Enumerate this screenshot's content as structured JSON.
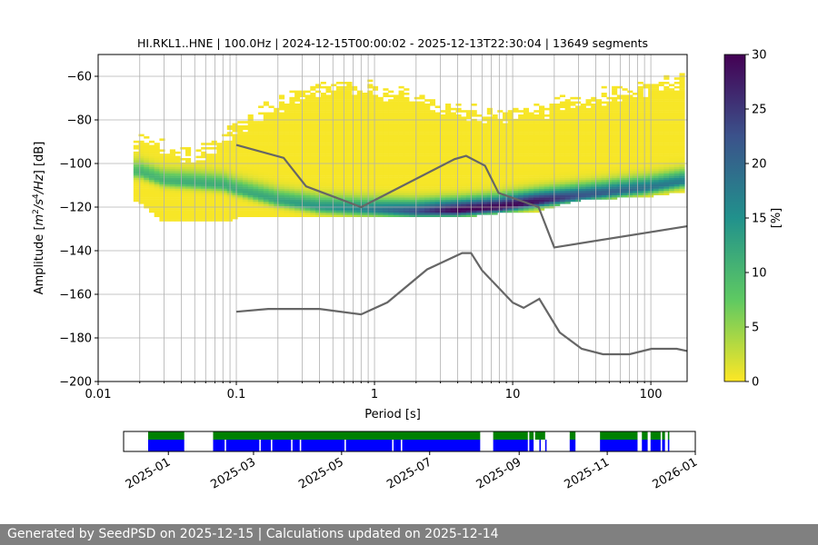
{
  "chart_data": [
    {
      "type": "heatmap",
      "title": "HI.RKL1..HNE | 100.0Hz | 2024-12-15T00:00:02 - 2025-12-13T22:30:04 | 13649 segments",
      "xlabel": "Period [s]",
      "ylabel_main": "Amplitude [m",
      "ylabel_parts": [
        "Amplitude [",
        "m",
        "2",
        "/s",
        "4",
        "/Hz",
        "] [dB]"
      ],
      "xscale": "log",
      "xlim": [
        0.01,
        183
      ],
      "ylim": [
        -200,
        -50
      ],
      "xticks": [
        "0.01",
        "0.1",
        "1",
        "10",
        "100"
      ],
      "xtick_values": [
        0.01,
        0.1,
        1,
        10,
        100
      ],
      "yticks": [
        -60,
        -80,
        -100,
        -120,
        -140,
        -160,
        -180,
        -200
      ],
      "grid": true,
      "colormap": "viridis_r",
      "colorbar": {
        "label": "[%]",
        "range": [
          0,
          30
        ],
        "ticks": [
          0,
          5,
          10,
          15,
          20,
          25,
          30
        ]
      },
      "psd_distribution": {
        "period": [
          0.018,
          0.02,
          0.03,
          0.05,
          0.08,
          0.1,
          0.2,
          0.4,
          0.8,
          2,
          4,
          8,
          15,
          30,
          100,
          183
        ],
        "mode_db": [
          -104,
          -104,
          -108,
          -109,
          -110,
          -112,
          -117,
          -120,
          -121,
          -122,
          -121.5,
          -120,
          -117.5,
          -115,
          -111,
          -108
        ],
        "upper_db": [
          -88,
          -85,
          -90,
          -94,
          -87,
          -80,
          -70,
          -62,
          -62,
          -67,
          -73,
          -75,
          -72,
          -68,
          -62,
          -58
        ],
        "lower_db": [
          -117,
          -117,
          -126,
          -126,
          -126,
          -124,
          -124,
          -124,
          -124,
          -123.5,
          -124,
          -122,
          -121,
          -116,
          -114,
          -112
        ],
        "peak_pct": [
          9,
          10,
          10,
          11,
          11,
          11,
          12,
          14,
          16,
          22,
          30,
          30,
          28,
          22,
          18,
          17
        ]
      },
      "noise_models": [
        {
          "name": "NHNM",
          "period": [
            0.1,
            0.22,
            0.32,
            0.8,
            3.8,
            4.6,
            6.3,
            7.9,
            15.4,
            20,
            183
          ],
          "db": [
            -91.5,
            -97.4,
            -110.5,
            -120,
            -98,
            -96.5,
            -101,
            -113.5,
            -120,
            -138.5,
            -128.8
          ]
        },
        {
          "name": "NLNM",
          "period": [
            0.1,
            0.17,
            0.4,
            0.8,
            1.24,
            2.4,
            4.3,
            5,
            6,
            10,
            12,
            15.6,
            21.9,
            31.6,
            45,
            70,
            101,
            154,
            183
          ],
          "db": [
            -168,
            -166.7,
            -166.7,
            -169.2,
            -163.7,
            -148.6,
            -141.1,
            -141.1,
            -149,
            -163.8,
            -166.2,
            -162.1,
            -177.5,
            -185,
            -187.5,
            -187.5,
            -185,
            -185,
            -186
          ]
        }
      ],
      "noise_model_color": "#666666"
    },
    {
      "type": "timeline",
      "xlim": [
        "2024-12-01",
        "2026-01-01"
      ],
      "xticks": [
        "2025-01",
        "2025-03",
        "2025-05",
        "2025-07",
        "2025-09",
        "2025-11",
        "2026-01"
      ],
      "colors": {
        "available": "#008000",
        "used": "#0000ff"
      },
      "available": [
        [
          "2024-12-18",
          "2025-01-12"
        ],
        [
          "2025-02-01",
          "2025-08-05"
        ],
        [
          "2025-08-14",
          "2025-09-07"
        ],
        [
          "2025-09-08",
          "2025-09-11"
        ],
        [
          "2025-09-12",
          "2025-09-19"
        ],
        [
          "2025-10-06",
          "2025-10-10"
        ],
        [
          "2025-10-27",
          "2025-11-22"
        ],
        [
          "2025-11-25",
          "2025-11-29"
        ],
        [
          "2025-12-01",
          "2025-12-08"
        ],
        [
          "2025-12-09",
          "2025-12-11"
        ],
        [
          "2025-12-13",
          "2025-12-14"
        ]
      ],
      "used": [
        [
          "2024-12-18",
          "2025-01-12"
        ],
        [
          "2025-02-01",
          "2025-02-09"
        ],
        [
          "2025-02-10",
          "2025-03-05"
        ],
        [
          "2025-03-06",
          "2025-03-13"
        ],
        [
          "2025-03-14",
          "2025-03-27"
        ],
        [
          "2025-03-28",
          "2025-04-02"
        ],
        [
          "2025-04-03",
          "2025-05-03"
        ],
        [
          "2025-05-04",
          "2025-06-05"
        ],
        [
          "2025-06-06",
          "2025-06-11"
        ],
        [
          "2025-06-12",
          "2025-08-05"
        ],
        [
          "2025-08-14",
          "2025-09-07"
        ],
        [
          "2025-09-08",
          "2025-09-11"
        ],
        [
          "2025-09-15",
          "2025-09-16"
        ],
        [
          "2025-09-19",
          "2025-09-20"
        ],
        [
          "2025-10-06",
          "2025-10-10"
        ],
        [
          "2025-10-27",
          "2025-11-22"
        ],
        [
          "2025-11-25",
          "2025-11-29"
        ],
        [
          "2025-12-01",
          "2025-12-08"
        ],
        [
          "2025-12-09",
          "2025-12-11"
        ],
        [
          "2025-12-13",
          "2025-12-14"
        ]
      ]
    }
  ],
  "footer": {
    "text": "Generated by SeedPSD on 2025-12-15 | Calculations updated on 2025-12-14"
  }
}
